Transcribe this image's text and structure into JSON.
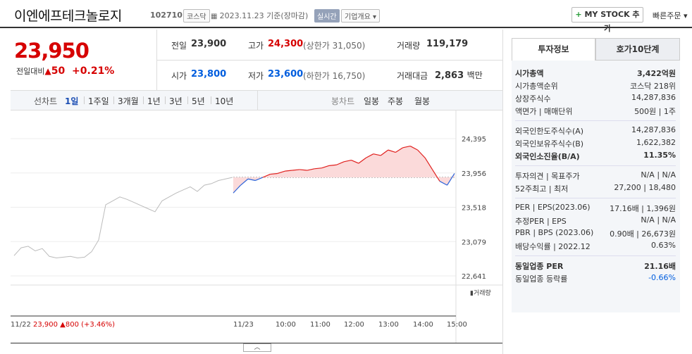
{
  "header": {
    "title": "이엔에프테크놀로지",
    "code": "102710",
    "market": "코스닥",
    "date_text": "2023.11.23  기준(장마감)",
    "live": "실시간",
    "overview": "기업개요",
    "mystock": "MY STOCK 추가",
    "quick_order": "빠른주문"
  },
  "quote": {
    "price": "23,950",
    "change_label": "전일대비",
    "change": "50",
    "change_pct": "+0.21%",
    "prev_label": "전일",
    "prev": "23,900",
    "open_label": "시가",
    "open": "23,800",
    "high_label": "고가",
    "high": "24,300",
    "high_sub": "(상한가 31,050)",
    "low_label": "저가",
    "low": "23,600",
    "low_sub": "(하한가 16,750)",
    "vol_label": "거래량",
    "vol": "119,179",
    "amt_label": "거래대금",
    "amt": "2,863",
    "amt_unit": "백만"
  },
  "line_tabs": {
    "label": "선차트",
    "items": [
      "1일",
      "1주일",
      "3개월",
      "1년",
      "3년",
      "5년",
      "10년"
    ],
    "active": "1일"
  },
  "candle_tabs": {
    "label": "봉차트",
    "items": [
      "일봉",
      "주봉",
      "월봉"
    ]
  },
  "chart_data": {
    "type": "line",
    "ylim": [
      22641,
      24395
    ],
    "y_ticks": [
      "24,395",
      "23,956",
      "23,518",
      "23,079",
      "22,641"
    ],
    "x_ticks": [
      "11/23",
      "10:00",
      "11:00",
      "12:00",
      "13:00",
      "14:00",
      "15:00"
    ],
    "baseline": 23900,
    "volume_label": "거래량",
    "footer_date": "11/22",
    "footer_price": "23,900",
    "footer_change": "800",
    "footer_pct": "(+3.46%)",
    "prev_day_series": [
      22900,
      23000,
      23020,
      22960,
      22990,
      22890,
      22870,
      22880,
      22890,
      22870,
      22880,
      22950,
      23100,
      23550,
      23600,
      23650,
      23620,
      23580,
      23540,
      23500,
      23460,
      23600,
      23650,
      23700,
      23740,
      23780,
      23720,
      23800,
      23820,
      23860,
      23880,
      23900
    ],
    "today_series": [
      23700,
      23800,
      23880,
      23860,
      23900,
      23940,
      23950,
      23980,
      23990,
      24000,
      23990,
      24010,
      24020,
      24050,
      24060,
      24100,
      24120,
      24080,
      24150,
      24200,
      24180,
      24250,
      24220,
      24280,
      24300,
      24250,
      24150,
      24000,
      23850,
      23800,
      23950
    ]
  },
  "invest": {
    "tab1": "투자정보",
    "tab2": "호가10단계",
    "rows1": [
      {
        "l": "시가총액",
        "r": "3,422억원"
      },
      {
        "l": "시가총액순위",
        "r": "코스닥 218위"
      },
      {
        "l": "상장주식수",
        "r": "14,287,836"
      },
      {
        "l": "액면가 | 매매단위",
        "r": "500원 | 1주"
      }
    ],
    "rows2": [
      {
        "l": "외국인한도주식수(A)",
        "r": "14,287,836"
      },
      {
        "l": "외국인보유주식수(B)",
        "r": "1,622,382"
      },
      {
        "l": "외국인소진율(B/A)",
        "r": "11.35%"
      }
    ],
    "rows3": [
      {
        "l": "투자의견 | 목표주가",
        "r": "N/A | N/A"
      },
      {
        "l": "52주최고 | 최저",
        "r": "27,200 | 18,480"
      }
    ],
    "rows4": [
      {
        "l": "PER | EPS(2023.06)",
        "r": "17.16배 | 1,396원"
      },
      {
        "l": "추정PER | EPS",
        "r": "N/A | N/A"
      },
      {
        "l": "PBR | BPS (2023.06)",
        "r": "0.90배 | 26,673원"
      },
      {
        "l": "배당수익률 | 2022.12",
        "r": "0.63%"
      }
    ],
    "rows5": [
      {
        "l": "동일업종 PER",
        "r": "21.16배"
      },
      {
        "l": "동일업종 등락률",
        "r": "-0.66%"
      }
    ]
  }
}
